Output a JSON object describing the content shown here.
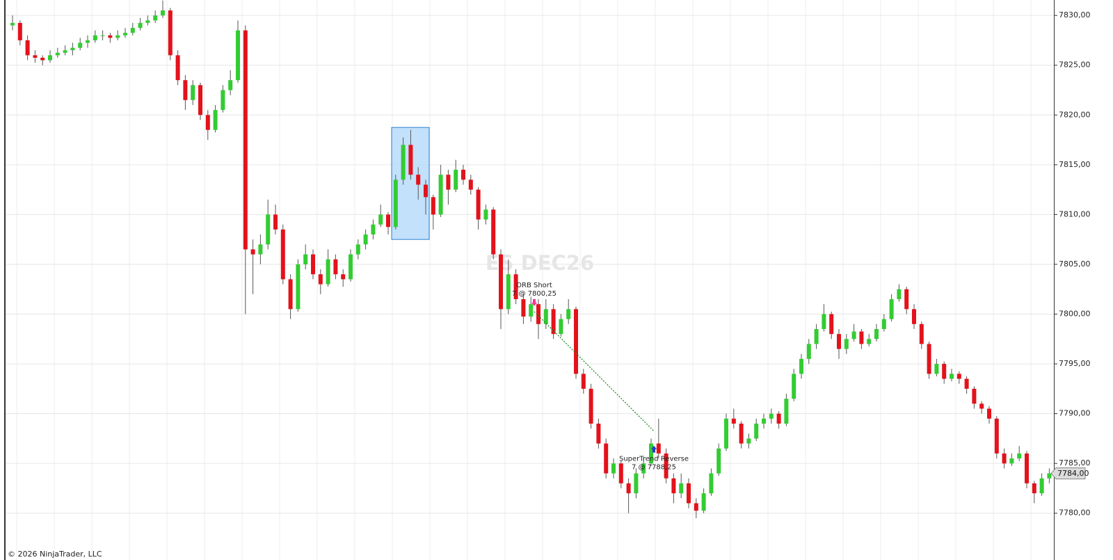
{
  "chart_data": {
    "type": "candlestick",
    "watermark": "ES DEC26",
    "up_color": "#33cc33",
    "down_color": "#e3121b",
    "wick_color": "#555555",
    "ylim": [
      7775.3,
      7831.55
    ],
    "yticks": [
      {
        "value": 7780,
        "label": "7780,00"
      },
      {
        "value": 7785,
        "label": "7785,00"
      },
      {
        "value": 7790,
        "label": "7790,00"
      },
      {
        "value": 7795,
        "label": "7795,00"
      },
      {
        "value": 7800,
        "label": "7800,00"
      },
      {
        "value": 7805,
        "label": "7805,00"
      },
      {
        "value": 7810,
        "label": "7810,00"
      },
      {
        "value": 7815,
        "label": "7815,00"
      },
      {
        "value": 7820,
        "label": "7820,00"
      },
      {
        "value": 7825,
        "label": "7825,00"
      },
      {
        "value": 7830,
        "label": "7830,00"
      }
    ],
    "grid": true,
    "last_price": {
      "value": 7784,
      "label": "7784,00"
    },
    "orb_range": {
      "high": 7818.75,
      "low": 7807.5,
      "color": "#b9dcfa"
    },
    "trades": [
      {
        "name": "ORB Short",
        "label": "7 @ 7800,25",
        "price": 7800.25,
        "direction": "short",
        "color": "#ff3399"
      },
      {
        "name": "SuperTrend Reverse",
        "label": "7 @ 7788,25",
        "price": 7788.25,
        "direction": "long",
        "color": "#1f3fd6"
      }
    ],
    "trade_line_color": "#228b22",
    "candles": [
      [
        7829,
        7830,
        7828.5,
        7829.25
      ],
      [
        7829.25,
        7829.5,
        7827,
        7827.5
      ],
      [
        7827.5,
        7828,
        7825.5,
        7826
      ],
      [
        7826,
        7826.5,
        7825.25,
        7825.75
      ],
      [
        7825.75,
        7826,
        7825,
        7825.5
      ],
      [
        7825.5,
        7826.5,
        7825.25,
        7826
      ],
      [
        7826,
        7826.75,
        7825.75,
        7826.25
      ],
      [
        7826.25,
        7827,
        7826,
        7826.5
      ],
      [
        7826.5,
        7827.25,
        7826,
        7826.75
      ],
      [
        7826.75,
        7827.75,
        7826.5,
        7827.25
      ],
      [
        7827.25,
        7828,
        7826.75,
        7827.5
      ],
      [
        7827.5,
        7828.5,
        7827.25,
        7828
      ],
      [
        7828,
        7828.5,
        7827.5,
        7828
      ],
      [
        7828,
        7828.25,
        7827.25,
        7827.75
      ],
      [
        7827.75,
        7828.5,
        7827.5,
        7828
      ],
      [
        7828,
        7828.75,
        7827.75,
        7828.25
      ],
      [
        7828.25,
        7829.25,
        7828,
        7828.75
      ],
      [
        7828.75,
        7829.75,
        7828.5,
        7829.25
      ],
      [
        7829.25,
        7830,
        7829,
        7829.5
      ],
      [
        7829.5,
        7830.5,
        7829.25,
        7830
      ],
      [
        7830,
        7831.5,
        7829.75,
        7830.5
      ],
      [
        7830.5,
        7830.75,
        7825.5,
        7826
      ],
      [
        7826,
        7826.5,
        7823,
        7823.5
      ],
      [
        7823.5,
        7824,
        7820.5,
        7821.5
      ],
      [
        7821.5,
        7823.5,
        7821,
        7823
      ],
      [
        7823,
        7823.25,
        7819.5,
        7820
      ],
      [
        7820,
        7820.5,
        7817.5,
        7818.5
      ],
      [
        7818.5,
        7821,
        7818.25,
        7820.5
      ],
      [
        7820.5,
        7823,
        7820.25,
        7822.5
      ],
      [
        7822.5,
        7824.5,
        7822,
        7823.5
      ],
      [
        7823.5,
        7829.5,
        7823.25,
        7828.5
      ],
      [
        7828.5,
        7829,
        7800,
        7806.5
      ],
      [
        7806.5,
        7807.5,
        7802,
        7806
      ],
      [
        7806,
        7808,
        7805,
        7807
      ],
      [
        7807,
        7811.5,
        7806.5,
        7810
      ],
      [
        7810,
        7811,
        7808,
        7808.5
      ],
      [
        7808.5,
        7809,
        7803,
        7803.5
      ],
      [
        7803.5,
        7804,
        7799.5,
        7800.5
      ],
      [
        7800.5,
        7805.5,
        7800.25,
        7805
      ],
      [
        7805,
        7807,
        7804.5,
        7806
      ],
      [
        7806,
        7806.5,
        7803.5,
        7804
      ],
      [
        7804,
        7804.5,
        7802,
        7803
      ],
      [
        7803,
        7806.5,
        7802.75,
        7805.5
      ],
      [
        7805.5,
        7806,
        7803.5,
        7804
      ],
      [
        7804,
        7804.5,
        7802.75,
        7803.5
      ],
      [
        7803.5,
        7806.5,
        7803.25,
        7806
      ],
      [
        7806,
        7807.5,
        7805.5,
        7807
      ],
      [
        7807,
        7808.5,
        7806.5,
        7808
      ],
      [
        7808,
        7809.5,
        7807.5,
        7809
      ],
      [
        7809,
        7811,
        7808.75,
        7810
      ],
      [
        7810,
        7810.25,
        7808,
        7808.75
      ],
      [
        7808.75,
        7814,
        7808.5,
        7813.5
      ],
      [
        7813.5,
        7817.75,
        7813,
        7817
      ],
      [
        7817,
        7818.5,
        7813.5,
        7814
      ],
      [
        7814,
        7814.75,
        7811.5,
        7813
      ],
      [
        7813,
        7813.5,
        7810,
        7811.75
      ],
      [
        7811.75,
        7812,
        7808.5,
        7810
      ],
      [
        7810,
        7815,
        7809.75,
        7814
      ],
      [
        7814,
        7814.5,
        7811,
        7812.5
      ],
      [
        7812.5,
        7815.5,
        7812.25,
        7814.5
      ],
      [
        7814.5,
        7815,
        7813,
        7813.5
      ],
      [
        7813.5,
        7814,
        7812,
        7812.5
      ],
      [
        7812.5,
        7812.75,
        7808.5,
        7809.5
      ],
      [
        7809.5,
        7811,
        7809,
        7810.5
      ],
      [
        7810.5,
        7810.75,
        7805.5,
        7806
      ],
      [
        7806,
        7806.5,
        7798.5,
        7800.5
      ],
      [
        7800.5,
        7805.5,
        7800,
        7804
      ],
      [
        7804,
        7804.5,
        7801,
        7801.5
      ],
      [
        7801.5,
        7802,
        7799,
        7799.75
      ],
      [
        7799.75,
        7801.75,
        7799.25,
        7801
      ],
      [
        7801,
        7801.5,
        7797.5,
        7799
      ],
      [
        7799,
        7801.5,
        7798.5,
        7800.5
      ],
      [
        7800.5,
        7801,
        7797.5,
        7798
      ],
      [
        7798,
        7800,
        7797.75,
        7799.5
      ],
      [
        7799.5,
        7801.5,
        7799,
        7800.5
      ],
      [
        7800.5,
        7800.75,
        7793.5,
        7794
      ],
      [
        7794,
        7794.5,
        7792,
        7792.5
      ],
      [
        7792.5,
        7793,
        7788.5,
        7789
      ],
      [
        7789,
        7789.5,
        7786.5,
        7787
      ],
      [
        7787,
        7787.5,
        7783.5,
        7784
      ],
      [
        7784,
        7785.5,
        7783.5,
        7785
      ],
      [
        7785,
        7785.25,
        7782.5,
        7783
      ],
      [
        7783,
        7783.5,
        7780,
        7782
      ],
      [
        7782,
        7784.5,
        7781.5,
        7784
      ],
      [
        7784,
        7785.5,
        7783.5,
        7785
      ],
      [
        7785,
        7787.5,
        7784.75,
        7787
      ],
      [
        7787,
        7789.5,
        7785.5,
        7786
      ],
      [
        7786,
        7786.5,
        7783,
        7783.5
      ],
      [
        7783.5,
        7784,
        7781,
        7782
      ],
      [
        7782,
        7784,
        7781.5,
        7783
      ],
      [
        7783,
        7783.5,
        7780.5,
        7781
      ],
      [
        7781,
        7781.5,
        7779.5,
        7780.25
      ],
      [
        7780.25,
        7782.5,
        7780,
        7782
      ],
      [
        7782,
        7784.5,
        7781.75,
        7784
      ],
      [
        7784,
        7787,
        7783.75,
        7786.5
      ],
      [
        7786.5,
        7790,
        7786.25,
        7789.5
      ],
      [
        7789.5,
        7790.5,
        7788.5,
        7789
      ],
      [
        7789,
        7789.25,
        7786.5,
        7787
      ],
      [
        7787,
        7788,
        7786.5,
        7787.5
      ],
      [
        7787.5,
        7789.5,
        7787.25,
        7789
      ],
      [
        7789,
        7790,
        7788.5,
        7789.5
      ],
      [
        7789.5,
        7790.5,
        7789,
        7790
      ],
      [
        7790,
        7790.25,
        7788.5,
        7789
      ],
      [
        7789,
        7792,
        7788.75,
        7791.5
      ],
      [
        7791.5,
        7794.5,
        7791.25,
        7794
      ],
      [
        7794,
        7796,
        7793.5,
        7795.5
      ],
      [
        7795.5,
        7797.5,
        7795,
        7797
      ],
      [
        7797,
        7799,
        7796.5,
        7798.5
      ],
      [
        7798.5,
        7801,
        7798.25,
        7800
      ],
      [
        7800,
        7800.25,
        7797.5,
        7798
      ],
      [
        7798,
        7798.5,
        7795.5,
        7796.5
      ],
      [
        7796.5,
        7798,
        7796,
        7797.5
      ],
      [
        7797.5,
        7799,
        7797.25,
        7798.25
      ],
      [
        7798.25,
        7798.5,
        7796.5,
        7797
      ],
      [
        7797,
        7798,
        7796.75,
        7797.5
      ],
      [
        7797.5,
        7799,
        7797.25,
        7798.5
      ],
      [
        7798.5,
        7800,
        7798.25,
        7799.5
      ],
      [
        7799.5,
        7802,
        7799.25,
        7801.5
      ],
      [
        7801.5,
        7803,
        7801.25,
        7802.5
      ],
      [
        7802.5,
        7802.75,
        7800,
        7800.5
      ],
      [
        7800.5,
        7801,
        7798.5,
        7799
      ],
      [
        7799,
        7799.25,
        7796.5,
        7797
      ],
      [
        7797,
        7797.25,
        7793.5,
        7794
      ],
      [
        7794,
        7795.5,
        7793.75,
        7795
      ],
      [
        7795,
        7795.25,
        7793,
        7793.5
      ],
      [
        7793.5,
        7794.5,
        7793.25,
        7794
      ],
      [
        7794,
        7794.25,
        7793,
        7793.5
      ],
      [
        7793.5,
        7793.75,
        7792,
        7792.5
      ],
      [
        7792.5,
        7792.75,
        7790.5,
        7791
      ],
      [
        7791,
        7791.25,
        7790,
        7790.5
      ],
      [
        7790.5,
        7790.75,
        7789,
        7789.5
      ],
      [
        7789.5,
        7789.75,
        7785.5,
        7786
      ],
      [
        7786,
        7786.5,
        7784.5,
        7785
      ],
      [
        7785,
        7786,
        7784.75,
        7785.5
      ],
      [
        7785.5,
        7786.75,
        7785.25,
        7786
      ],
      [
        7786,
        7786.25,
        7782.5,
        7783
      ],
      [
        7783,
        7783.25,
        7781,
        7782
      ],
      [
        7782,
        7784,
        7781.75,
        7783.5
      ],
      [
        7783.5,
        7784.5,
        7783,
        7784
      ]
    ]
  },
  "footer": "© 2026 NinjaTrader, LLC"
}
